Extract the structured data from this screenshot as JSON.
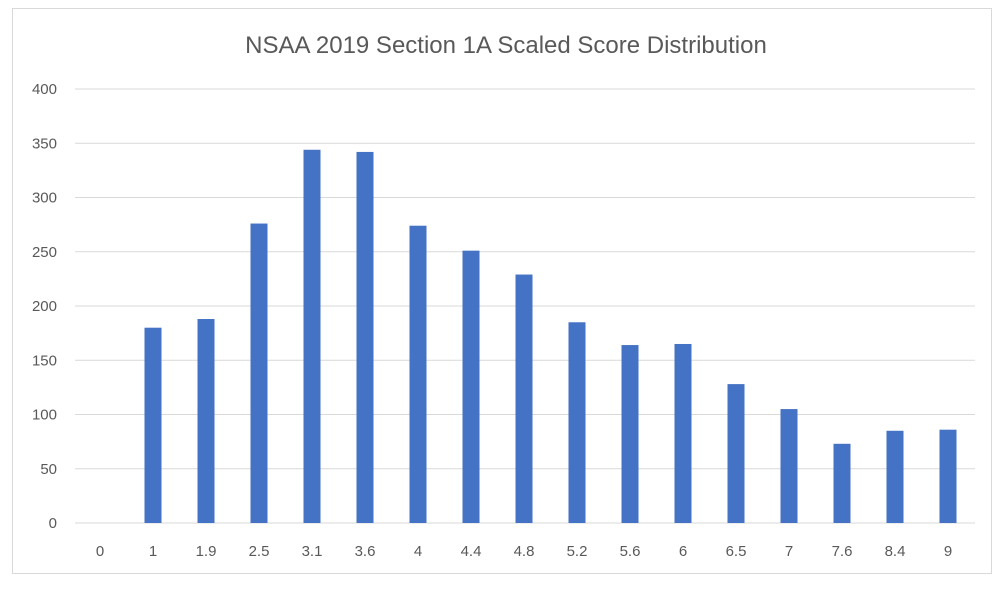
{
  "chart_data": {
    "type": "bar",
    "title": "NSAA 2019 Section 1A Scaled Score Distribution",
    "xlabel": "",
    "ylabel": "",
    "categories": [
      "0",
      "1",
      "1.9",
      "2.5",
      "3.1",
      "3.6",
      "4",
      "4.4",
      "4.8",
      "5.2",
      "5.6",
      "6",
      "6.5",
      "7",
      "7.6",
      "8.4",
      "9"
    ],
    "values": [
      0,
      180,
      188,
      276,
      344,
      342,
      274,
      251,
      229,
      185,
      164,
      165,
      128,
      105,
      73,
      85,
      86
    ],
    "ylim": [
      0,
      400
    ],
    "yticks": [
      0,
      50,
      100,
      150,
      200,
      250,
      300,
      350,
      400
    ],
    "grid": true,
    "legend": "none",
    "bar_color": "#4472C4",
    "grid_color": "#d9d9d9"
  }
}
